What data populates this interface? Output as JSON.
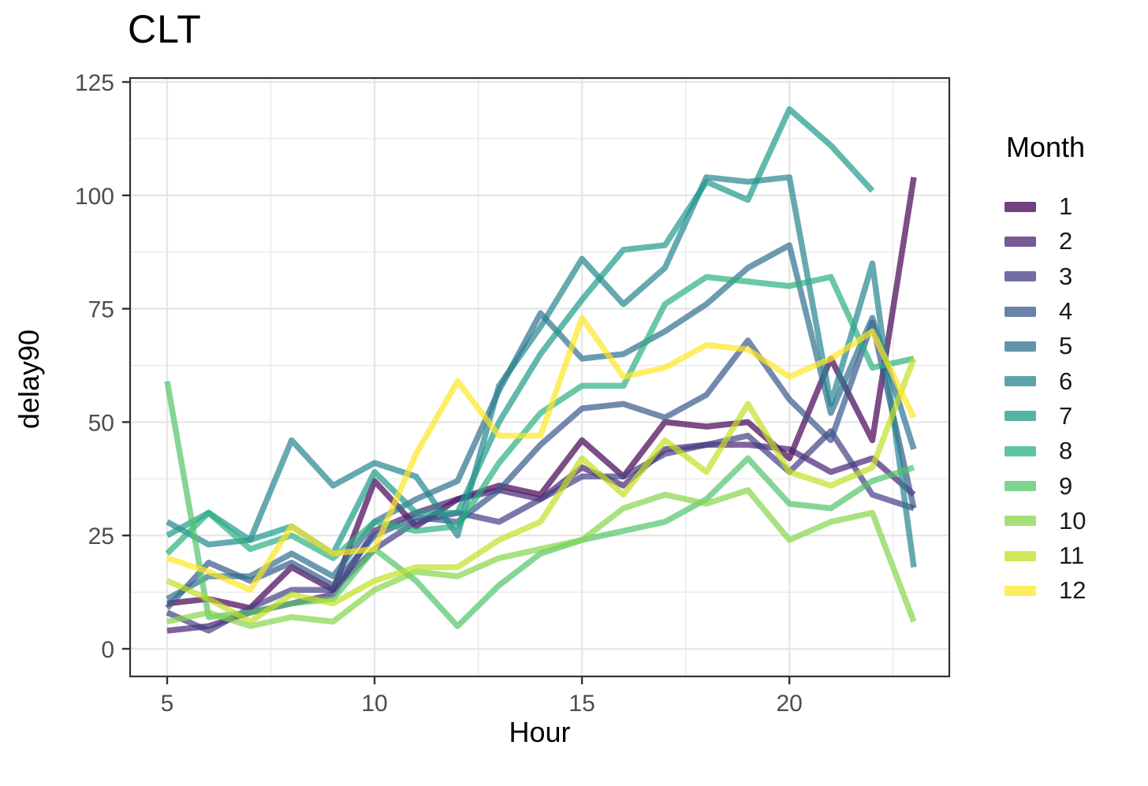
{
  "title": "CLT",
  "chart_data": {
    "type": "line",
    "title": "CLT",
    "xlabel": "Hour",
    "ylabel": "delay90",
    "x": [
      5,
      6,
      7,
      8,
      9,
      10,
      11,
      12,
      13,
      14,
      15,
      16,
      17,
      18,
      19,
      20,
      21,
      22,
      23
    ],
    "x_ticks": [
      5,
      10,
      15,
      20
    ],
    "y_ticks": [
      0,
      25,
      50,
      75,
      100,
      125
    ],
    "x_minor": [
      7.5,
      12.5,
      17.5,
      22.5
    ],
    "y_minor": [
      12.5,
      37.5,
      62.5,
      87.5,
      112.5
    ],
    "xlim": [
      4.1,
      23.9
    ],
    "ylim": [
      -6,
      126
    ],
    "grid": true,
    "legend_position": "right",
    "legend_title": "Month",
    "line_alpha": 0.7,
    "line_width": 7.5,
    "panel_background": "#ffffff",
    "grid_color": "#e7e7e7",
    "panel_border_color": "#333333",
    "series": [
      {
        "name": "1",
        "color": "#440154",
        "values": [
          10,
          11,
          9,
          18,
          13,
          37,
          27,
          33,
          36,
          34,
          46,
          38,
          50,
          49,
          50,
          42,
          64,
          46,
          104
        ]
      },
      {
        "name": "2",
        "color": "#482173",
        "values": [
          4,
          5,
          8,
          10,
          12,
          26,
          30,
          33,
          35,
          33,
          40,
          36,
          44,
          45,
          45,
          44,
          39,
          42,
          34
        ]
      },
      {
        "name": "3",
        "color": "#433E85",
        "values": [
          8,
          4,
          9,
          13,
          13,
          22,
          28,
          30,
          28,
          33,
          38,
          38,
          43,
          45,
          47,
          39,
          48,
          34,
          31
        ]
      },
      {
        "name": "4",
        "color": "#38598C",
        "values": [
          9,
          19,
          15,
          19,
          14,
          25,
          29,
          28,
          35,
          45,
          53,
          54,
          51,
          56,
          68,
          55,
          46,
          72,
          31
        ]
      },
      {
        "name": "5",
        "color": "#2D708E",
        "values": [
          11,
          16,
          16,
          21,
          16,
          28,
          33,
          37,
          57,
          74,
          64,
          65,
          70,
          76,
          84,
          89,
          52,
          73,
          44
        ]
      },
      {
        "name": "6",
        "color": "#25858E",
        "values": [
          28,
          23,
          24,
          46,
          36,
          41,
          38,
          25,
          58,
          71,
          86,
          76,
          84,
          104,
          103,
          104,
          54,
          85,
          18
        ]
      },
      {
        "name": "7",
        "color": "#1E9B8A",
        "values": [
          25,
          30,
          24,
          27,
          21,
          39,
          30,
          30,
          50,
          65,
          77,
          88,
          89,
          103,
          99,
          119,
          111,
          101,
          null
        ]
      },
      {
        "name": "8",
        "color": "#2BB07F",
        "values": [
          21,
          30,
          22,
          25,
          20,
          28,
          26,
          27,
          41,
          52,
          58,
          58,
          76,
          82,
          81,
          80,
          82,
          62,
          64
        ]
      },
      {
        "name": "9",
        "color": "#51C56A",
        "values": [
          59,
          7,
          8,
          10,
          11,
          22,
          15,
          5,
          14,
          21,
          24,
          26,
          28,
          33,
          42,
          32,
          31,
          37,
          40
        ]
      },
      {
        "name": "10",
        "color": "#85D54A",
        "values": [
          6,
          8,
          5,
          7,
          6,
          13,
          17,
          16,
          20,
          22,
          24,
          31,
          34,
          32,
          35,
          24,
          28,
          30,
          6
        ]
      },
      {
        "name": "11",
        "color": "#C2DF23",
        "values": [
          15,
          11,
          6,
          12,
          10,
          15,
          18,
          18,
          24,
          28,
          42,
          34,
          46,
          39,
          54,
          39,
          36,
          40,
          64
        ]
      },
      {
        "name": "12",
        "color": "#FDE725",
        "values": [
          20,
          17,
          13,
          27,
          21,
          22,
          43,
          59,
          47,
          47,
          73,
          60,
          62,
          67,
          66,
          60,
          64,
          70,
          51
        ]
      }
    ]
  }
}
